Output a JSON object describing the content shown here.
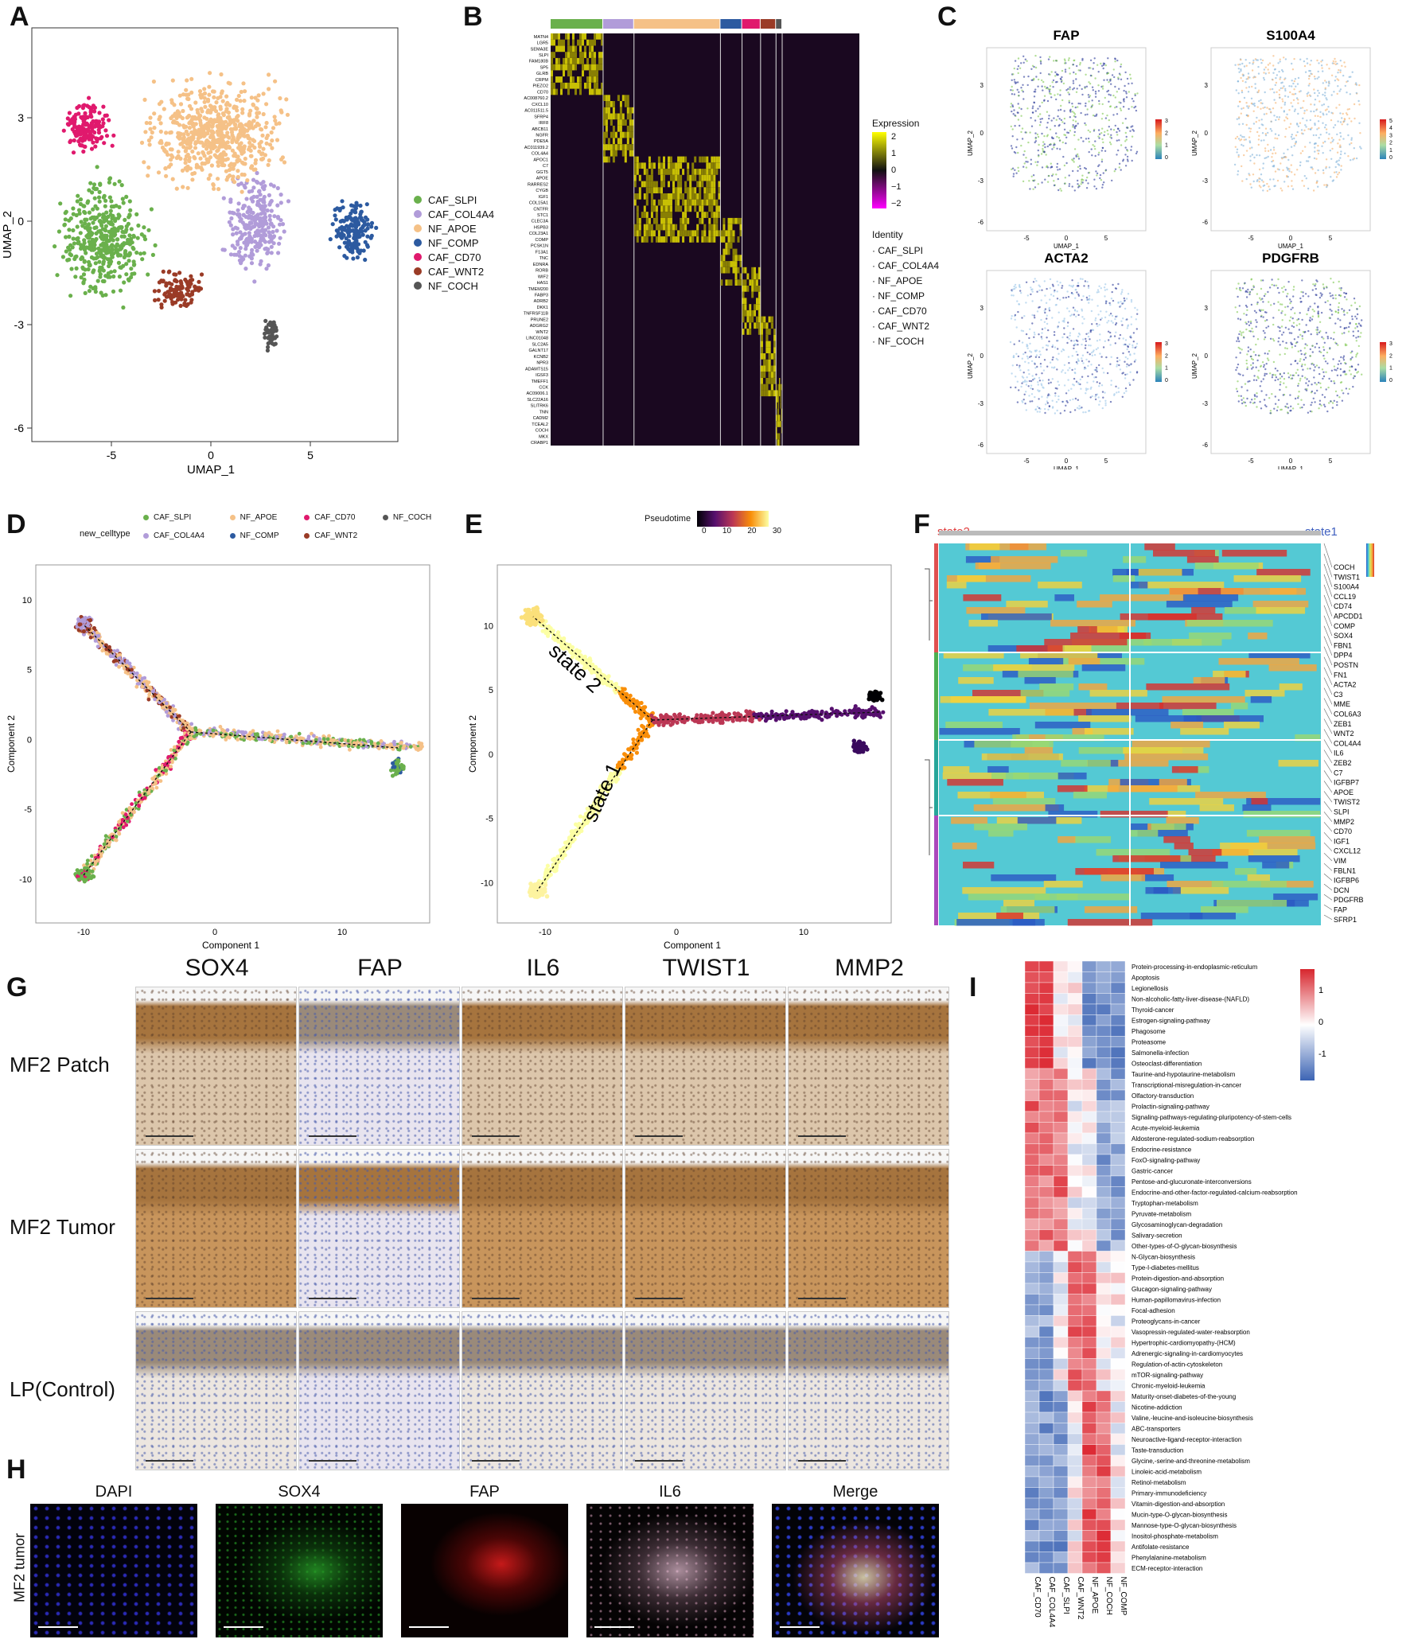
{
  "labels": {
    "A": "A",
    "B": "B",
    "C": "C",
    "D": "D",
    "E": "E",
    "F": "F",
    "G": "G",
    "H": "H",
    "I": "I"
  },
  "panelA": {
    "xlabel": "UMAP_1",
    "ylabel": "UMAP_2",
    "xticks": [
      "-5",
      "0",
      "5"
    ],
    "yticks": [
      "3",
      "0",
      "-3",
      "-6"
    ],
    "legend": [
      {
        "name": "CAF_SLPI",
        "color": "#6ab04c"
      },
      {
        "name": "CAF_COL4A4",
        "color": "#b19cd9"
      },
      {
        "name": "NF_APOE",
        "color": "#f5c187"
      },
      {
        "name": "NF_COMP",
        "color": "#2c5aa0"
      },
      {
        "name": "CAF_CD70",
        "color": "#e0196d"
      },
      {
        "name": "CAF_WNT2",
        "color": "#9a3b26"
      },
      {
        "name": "NF_COCH",
        "color": "#555555"
      }
    ]
  },
  "panelB": {
    "legend_title": "Expression",
    "scale": [
      "2",
      "1",
      "0",
      "−1",
      "−2"
    ],
    "identity_title": "Identity",
    "identities": [
      "CAF_SLPI",
      "CAF_COL4A4",
      "NF_APOE",
      "NF_COMP",
      "CAF_CD70",
      "CAF_WNT2",
      "NF_COCH"
    ],
    "bar_colors": [
      "#6ab04c",
      "#b19cd9",
      "#f5c187",
      "#2c5aa0",
      "#e0196d",
      "#9a3b26",
      "#555555"
    ],
    "genes": [
      "MATN4",
      "LGR5",
      "SEMA3E",
      "SLPI",
      "FAM180B",
      "SP5",
      "GLRB",
      "CRPM",
      "PIEZO2",
      "CD70",
      "AC008760.2",
      "CXCL10",
      "AC011511.5",
      "SFRP4",
      "IRF8",
      "ABCB11",
      "NGFR",
      "PDE5A",
      "AC011939.2",
      "COL4A4",
      "APOC1",
      "C7",
      "GGT5",
      "APOE",
      "RARRES2",
      "CYGB",
      "IGF1",
      "COL15A1",
      "CNTFR",
      "STC1",
      "CLEC3A",
      "HSPB3",
      "COL23A1",
      "COMP",
      "PCSK1N",
      "F13A1",
      "TNC",
      "EDNRA",
      "RORB",
      "WIF2",
      "HAS1",
      "TMEM200",
      "FABP3",
      "ADRB2",
      "DKK1",
      "TNFRSF11B",
      "PRUNE2",
      "ADGRG2",
      "WNT2",
      "LINC01048",
      "SLC2A5",
      "GALNT17",
      "KCNB2",
      "NPR3",
      "ADAMTS15",
      "IGSF3",
      "TMEFF1",
      "CCK",
      "AC09006.1",
      "SLC22A16",
      "SLITRK6",
      "TNN",
      "CADM2",
      "TCEAL2",
      "COCH",
      "MKX",
      "CRABP1"
    ]
  },
  "panelC": {
    "titles": [
      "FAP",
      "S100A4",
      "ACTA2",
      "PDGFRB"
    ],
    "xlabel": "UMAP_1",
    "ylabel": "UMAP_2",
    "xticks": [
      "-5",
      "0",
      "5"
    ],
    "yticks": [
      "3",
      "0",
      "-3",
      "-6"
    ],
    "scales": [
      [
        "3",
        "2",
        "1",
        "0"
      ],
      [
        "5",
        "4",
        "3",
        "2",
        "1",
        "0"
      ],
      [
        "3",
        "2",
        "1",
        "0"
      ],
      [
        "3",
        "2",
        "1",
        "0"
      ]
    ]
  },
  "panelD": {
    "legend_title": "new_celltype",
    "legend": [
      {
        "name": "CAF_SLPI",
        "color": "#6ab04c"
      },
      {
        "name": "NF_APOE",
        "color": "#f5c187"
      },
      {
        "name": "CAF_CD70",
        "color": "#e0196d"
      },
      {
        "name": "NF_COCH",
        "color": "#555555"
      },
      {
        "name": "CAF_COL4A4",
        "color": "#b19cd9"
      },
      {
        "name": "NF_COMP",
        "color": "#2c5aa0"
      },
      {
        "name": "CAF_WNT2",
        "color": "#9a3b26"
      }
    ],
    "xlabel": "Component 1",
    "ylabel": "Component 2",
    "xticks": [
      "-10",
      "0",
      "10"
    ],
    "yticks": [
      "10",
      "5",
      "0",
      "-5",
      "-10"
    ]
  },
  "panelE": {
    "legend_title": "Pseudotime",
    "scale": [
      "0",
      "10",
      "20",
      "30"
    ],
    "xlabel": "Component 1",
    "ylabel": "Component 2",
    "xticks": [
      "-10",
      "0",
      "10"
    ],
    "yticks": [
      "10",
      "5",
      "0",
      "-5",
      "-10"
    ],
    "state2": "state 2",
    "state1": "state 1"
  },
  "panelF": {
    "left_title": "state2",
    "right_title": "state1",
    "genes": [
      "COCH",
      "TWIST1",
      "S100A4",
      "CCL19",
      "CD74",
      "APCDD1",
      "COMP",
      "SOX4",
      "FBN1",
      "DPP4",
      "POSTN",
      "FN1",
      "ACTA2",
      "C3",
      "MME",
      "COL6A3",
      "ZEB1",
      "WNT2",
      "COL4A4",
      "IL6",
      "ZEB2",
      "C7",
      "IGFBP7",
      "APOE",
      "TWIST2",
      "SLPI",
      "MMP2",
      "CD70",
      "IGF1",
      "CXCL12",
      "VIM",
      "FBLN1",
      "IGFBP6",
      "DCN",
      "PDGFRB",
      "FAP",
      "SFRP1"
    ]
  },
  "panelG": {
    "columns": [
      "SOX4",
      "FAP",
      "IL6",
      "TWIST1",
      "MMP2"
    ],
    "rows": [
      "MF2 Patch",
      "MF2 Tumor",
      "LP(Control)"
    ]
  },
  "panelH": {
    "columns": [
      "DAPI",
      "SOX4",
      "FAP",
      "IL6",
      "Merge"
    ],
    "row": "MF2 tumor"
  },
  "panelI": {
    "scale": [
      "1",
      "0",
      "-1"
    ],
    "columns": [
      "CAF_CD70",
      "CAF_COL4A4",
      "CAF_SLPI",
      "CAF_WNT2",
      "NF_APOE",
      "NF_COCH",
      "NF_COMP"
    ],
    "pathways": [
      "Protein-processing-in-endoplasmic-reticulum",
      "Apoptosis",
      "Legionellosis",
      "Non-alcoholic-fatty-liver-disease-(NAFLD)",
      "Thyroid-cancer",
      "Estrogen-signaling-pathway",
      "Phagosome",
      "Proteasome",
      "Salmonella-infection",
      "Osteoclast-differentiation",
      "Taurine-and-hypotaurine-metabolism",
      "Transcriptional-misregulation-in-cancer",
      "Olfactory-transduction",
      "Prolactin-signaling-pathway",
      "Signaling-pathways-regulating-pluripotency-of-stem-cells",
      "Acute-myeloid-leukemia",
      "Aldosterone-regulated-sodium-reabsorption",
      "Endocrine-resistance",
      "FoxO-signaling-pathway",
      "Gastric-cancer",
      "Pentose-and-glucuronate-interconversions",
      "Endocrine-and-other-factor-regulated-calcium-reabsorption",
      "Tryptophan-metabolism",
      "Pyruvate-metabolism",
      "Glycosaminoglycan-degradation",
      "Salivary-secretion",
      "Other-types-of-O-glycan-biosynthesis",
      "N-Glycan-biosynthesis",
      "Type-I-diabetes-mellitus",
      "Protein-digestion-and-absorption",
      "Glucagon-signaling-pathway",
      "Human-papillomavirus-infection",
      "Focal-adhesion",
      "Proteoglycans-in-cancer",
      "Vasopressin-regulated-water-reabsorption",
      "Hypertrophic-cardiomyopathy-(HCM)",
      "Adrenergic-signaling-in-cardiomyocytes",
      "Regulation-of-actin-cytoskeleton",
      "mTOR-signaling-pathway",
      "Chronic-myeloid-leukemia",
      "Maturity-onset-diabetes-of-the-young",
      "Nicotine-addiction",
      "Valine,-leucine-and-isoleucine-biosynthesis",
      "ABC-transporters",
      "Neuroactive-ligand-receptor-interaction",
      "Taste-transduction",
      "Glycine,-serine-and-threonine-metabolism",
      "Linoleic-acid-metabolism",
      "Retinol-metabolism",
      "Primary-immunodeficiency",
      "Vitamin-digestion-and-absorption",
      "Mucin-type-O-glycan-biosynthesis",
      "Mannose-type-O-glycan-biosynthesis",
      "Inositol-phosphate-metabolism",
      "Antifolate-resistance",
      "Phenylalanine-metabolism",
      "ECM-receptor-interaction"
    ]
  }
}
